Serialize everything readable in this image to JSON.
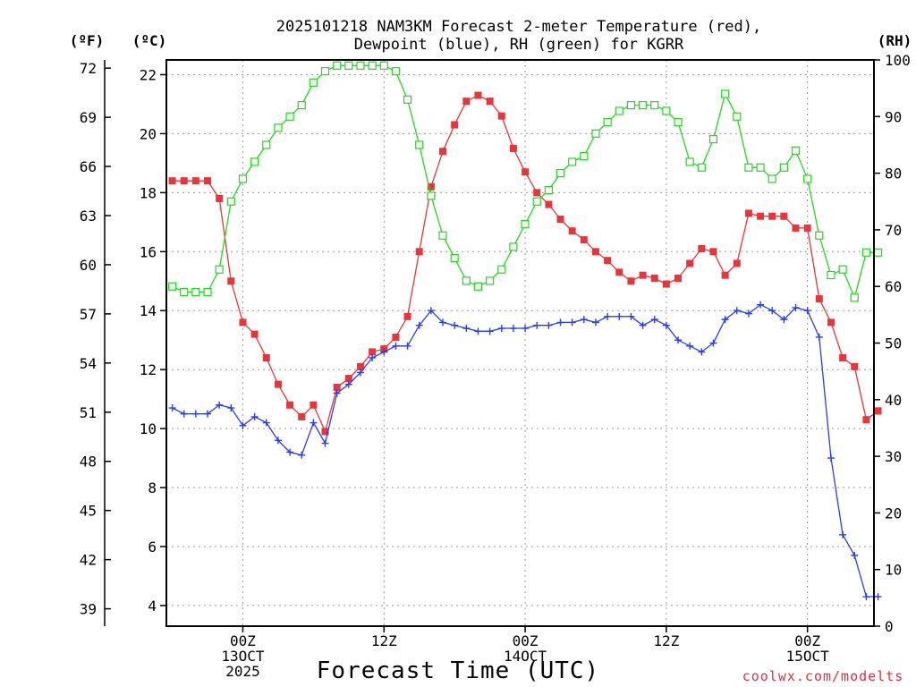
{
  "chart_data": {
    "type": "line",
    "title_line1": "2025101218 NAM3KM Forecast 2-meter Temperature (red),",
    "title_line2": "Dewpoint (blue), RH (green) for KGRR",
    "xlabel": "Forecast Time (UTC)",
    "credit": "coolwx.com/modelts",
    "units": {
      "fahrenheit": "(ºF)",
      "celsius": "(ºC)",
      "rh": "(RH)"
    },
    "ylim_c": [
      3.3,
      22.5
    ],
    "ylim_rh": [
      0,
      100
    ],
    "y_c_ticks": [
      "4",
      "6",
      "8",
      "10",
      "12",
      "14",
      "16",
      "18",
      "20",
      "22"
    ],
    "y_f_ticks": [
      "39",
      "42",
      "45",
      "48",
      "51",
      "54",
      "57",
      "60",
      "63",
      "66",
      "69",
      "72"
    ],
    "y_rh_ticks": [
      "0",
      "10",
      "20",
      "30",
      "40",
      "50",
      "60",
      "70",
      "80",
      "90",
      "100"
    ],
    "x_ticks": [
      {
        "hour": 6,
        "lines": [
          "00Z",
          "13OCT",
          "2025"
        ]
      },
      {
        "hour": 18,
        "lines": [
          "12Z"
        ]
      },
      {
        "hour": 30,
        "lines": [
          "00Z",
          "14OCT"
        ]
      },
      {
        "hour": 42,
        "lines": [
          "12Z"
        ]
      },
      {
        "hour": 54,
        "lines": [
          "00Z",
          "15OCT"
        ]
      }
    ],
    "series": [
      {
        "name": "Temperature",
        "unit": "C",
        "color": "#e8343a",
        "marker": "filled-square",
        "values": [
          18.4,
          18.4,
          18.4,
          18.4,
          17.8,
          15.0,
          13.6,
          13.2,
          12.4,
          11.5,
          10.8,
          10.4,
          10.8,
          9.9,
          11.4,
          11.7,
          12.1,
          12.6,
          12.7,
          13.1,
          13.8,
          16.0,
          18.2,
          19.4,
          20.3,
          21.1,
          21.3,
          21.1,
          20.6,
          19.5,
          18.7,
          18.0,
          17.6,
          17.1,
          16.7,
          16.4,
          16.0,
          15.7,
          15.3,
          15.0,
          15.2,
          15.1,
          14.9,
          15.1,
          15.6,
          16.1,
          16.0,
          15.2,
          15.6,
          17.3,
          17.2,
          17.2,
          17.2,
          16.8,
          16.8,
          14.4,
          13.6,
          12.4,
          12.1,
          10.3,
          10.6
        ]
      },
      {
        "name": "Dewpoint",
        "unit": "C",
        "color": "#2a3cf0",
        "marker": "plus",
        "values": [
          10.7,
          10.5,
          10.5,
          10.5,
          10.8,
          10.7,
          10.1,
          10.4,
          10.2,
          9.6,
          9.2,
          9.1,
          10.2,
          9.5,
          11.2,
          11.5,
          11.9,
          12.4,
          12.6,
          12.8,
          12.8,
          13.5,
          14.0,
          13.6,
          13.5,
          13.4,
          13.3,
          13.3,
          13.4,
          13.4,
          13.4,
          13.5,
          13.5,
          13.6,
          13.6,
          13.7,
          13.6,
          13.8,
          13.8,
          13.8,
          13.5,
          13.7,
          13.5,
          13.0,
          12.8,
          12.6,
          12.9,
          13.7,
          14.0,
          13.9,
          14.2,
          14.0,
          13.7,
          14.1,
          14.0,
          13.1,
          9.0,
          6.4,
          5.7,
          4.3,
          4.3
        ]
      },
      {
        "name": "RH",
        "unit": "%",
        "color": "#22d81e",
        "marker": "open-square",
        "values": [
          60,
          59,
          59,
          59,
          63,
          75,
          79,
          82,
          85,
          88,
          90,
          92,
          96,
          98,
          99,
          99,
          99,
          99,
          99,
          98,
          93,
          85,
          76,
          69,
          65,
          61,
          60,
          61,
          63,
          67,
          71,
          75,
          77,
          80,
          82,
          83,
          87,
          89,
          91,
          92,
          92,
          92,
          91,
          89,
          82,
          81,
          86,
          94,
          90,
          81,
          81,
          79,
          81,
          84,
          79,
          69,
          62,
          63,
          58,
          66,
          66
        ]
      }
    ]
  }
}
